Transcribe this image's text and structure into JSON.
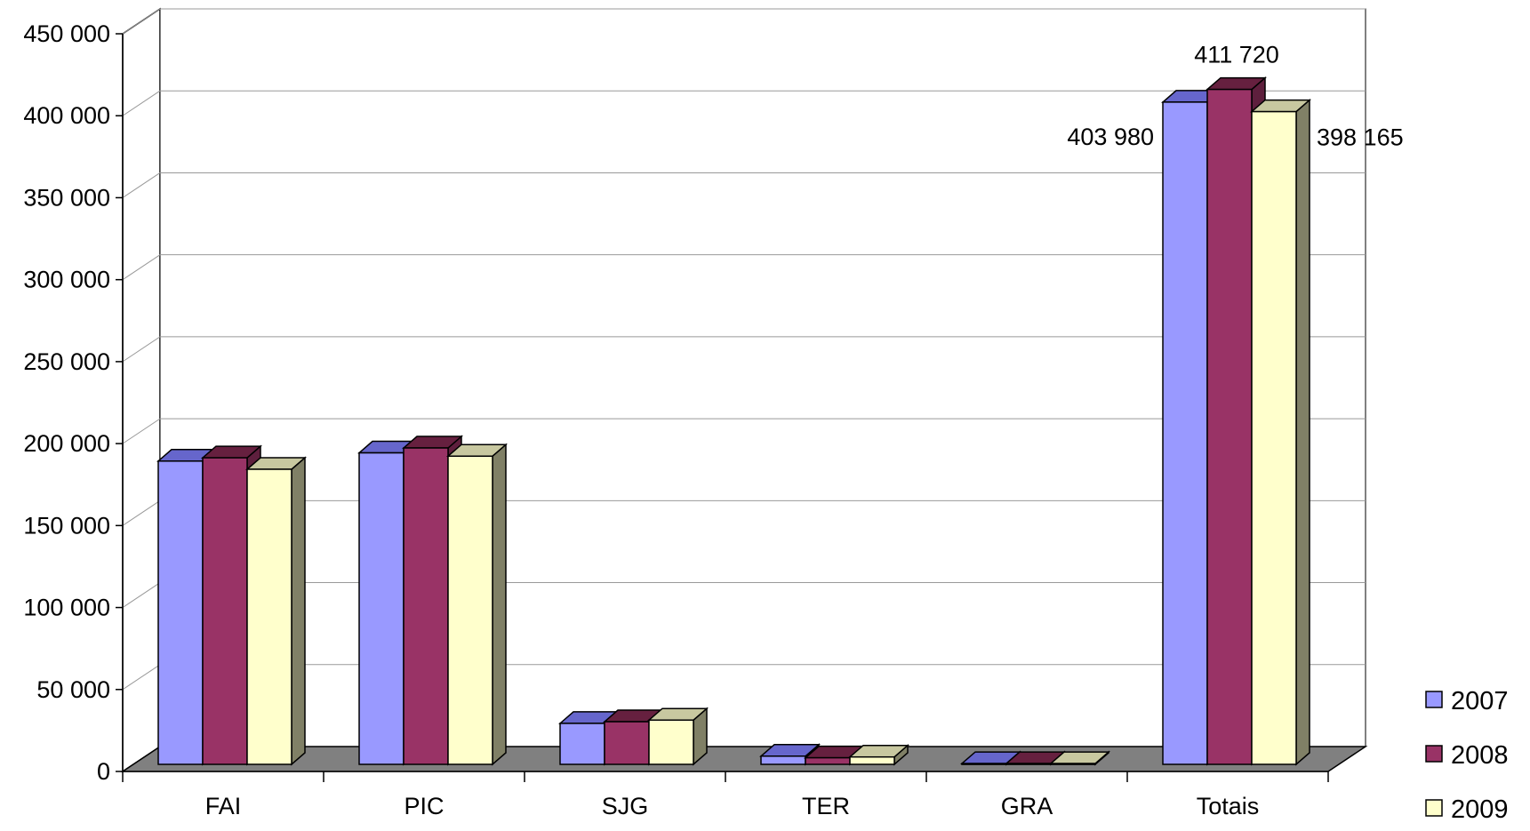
{
  "chart_data": {
    "type": "bar",
    "title": "",
    "xlabel": "",
    "ylabel": "",
    "categories": [
      "FAI",
      "PIC",
      "SJG",
      "TER",
      "GRA",
      "Totais"
    ],
    "series": [
      {
        "name": "2007",
        "values": [
          185000,
          190000,
          25000,
          5000,
          500,
          403980
        ],
        "color": "#9999ff",
        "top": "#6666cc",
        "side": "#6e6eb8"
      },
      {
        "name": "2008",
        "values": [
          187000,
          193000,
          26000,
          4000,
          500,
          411720
        ],
        "color": "#993366",
        "top": "#66203f",
        "side": "#5e1f3d"
      },
      {
        "name": "2009",
        "values": [
          180000,
          188000,
          27000,
          4500,
          500,
          398165
        ],
        "color": "#ffffcc",
        "top": "#c8c8a0",
        "side": "#808066"
      }
    ],
    "data_labels": [
      {
        "category": "Totais",
        "series": "2007",
        "text": "403 980"
      },
      {
        "category": "Totais",
        "series": "2008",
        "text": "411 720"
      },
      {
        "category": "Totais",
        "series": "2009",
        "text": "398 165"
      }
    ],
    "ylim": [
      0,
      450000
    ],
    "yticks": [
      "0",
      "50 000",
      "100 000",
      "150 000",
      "200 000",
      "250 000",
      "300 000",
      "350 000",
      "400 000",
      "450 000"
    ],
    "ytick_values": [
      0,
      50000,
      100000,
      150000,
      200000,
      250000,
      300000,
      350000,
      400000,
      450000
    ],
    "grid": true,
    "legend_position": "bottom-right",
    "floor_color": "#808080"
  }
}
